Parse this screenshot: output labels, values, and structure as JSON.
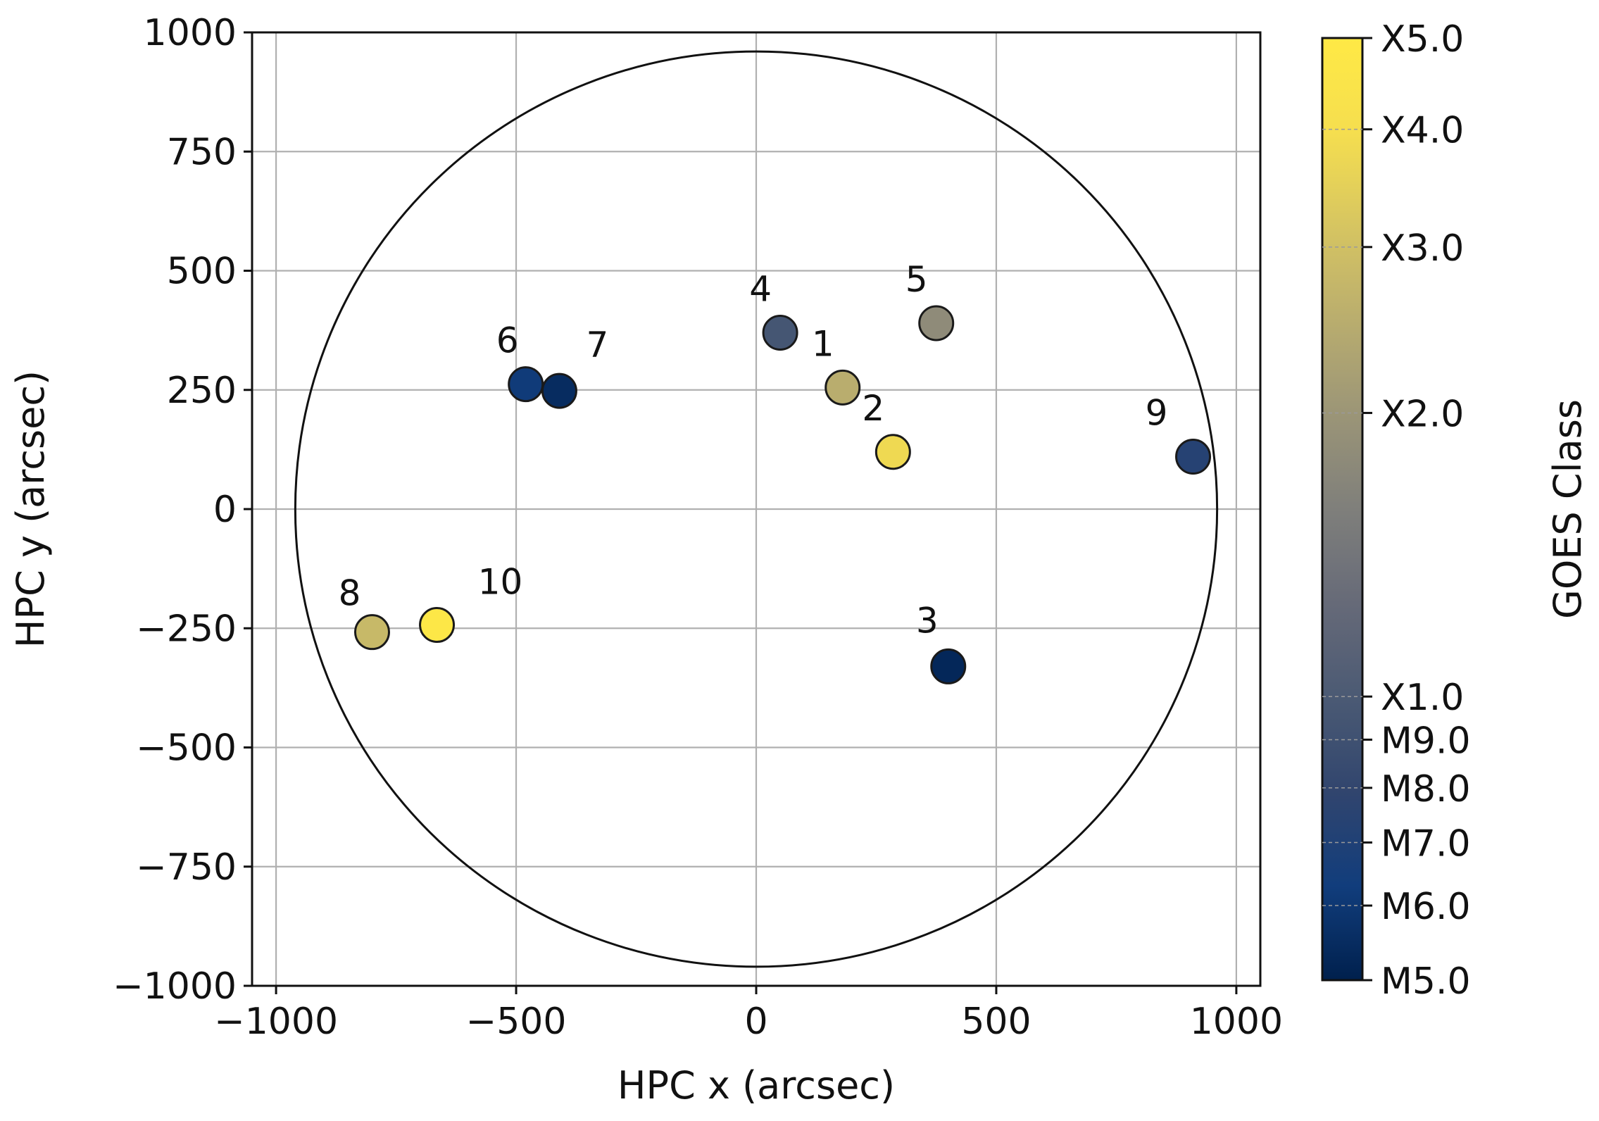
{
  "chart_data": {
    "type": "scatter",
    "xlabel": "HPC x (arcsec)",
    "ylabel": "HPC y (arcsec)",
    "xlim": [
      -1050,
      1050
    ],
    "ylim": [
      -1000,
      1000
    ],
    "xticks": [
      -1000,
      -500,
      0,
      500,
      1000
    ],
    "xtick_labels": [
      "−1000",
      "−500",
      "0",
      "500",
      "1000"
    ],
    "yticks": [
      -1000,
      -750,
      -500,
      -250,
      0,
      250,
      500,
      750,
      1000
    ],
    "ytick_labels": [
      "−1000",
      "−750",
      "−500",
      "−250",
      "0",
      "250",
      "500",
      "750",
      "1000"
    ],
    "grid": true,
    "solar_disk_radius": 960,
    "points": [
      {
        "label": "1",
        "x": 180,
        "y": 255,
        "goes": 25
      },
      {
        "label": "2",
        "x": 285,
        "y": 120,
        "goes": 38
      },
      {
        "label": "3",
        "x": 400,
        "y": -330,
        "goes": 5.3
      },
      {
        "label": "4",
        "x": 50,
        "y": 370,
        "goes": 9.5
      },
      {
        "label": "5",
        "x": 375,
        "y": 390,
        "goes": 18
      },
      {
        "label": "6",
        "x": -480,
        "y": 262,
        "goes": 6.2
      },
      {
        "label": "7",
        "x": -410,
        "y": 248,
        "goes": 5.5
      },
      {
        "label": "8",
        "x": -800,
        "y": -258,
        "goes": 28
      },
      {
        "label": "9",
        "x": 910,
        "y": 110,
        "goes": 7.3
      },
      {
        "label": "10",
        "x": -665,
        "y": -243,
        "goes": 48
      }
    ],
    "colorbar": {
      "label": "GOES Class",
      "ticks": [
        5,
        6,
        7,
        8,
        9,
        10,
        20,
        30,
        40,
        50
      ],
      "tick_labels": [
        "M5.0",
        "M6.0",
        "M7.0",
        "M8.0",
        "M9.0",
        "X1.0",
        "X2.0",
        "X3.0",
        "X4.0",
        "X5.0"
      ],
      "colormap": "cividis",
      "colors": [
        "#00204d",
        "#113d7c",
        "#31456e",
        "#4b5a74",
        "#666a78",
        "#7f7f7b",
        "#9b9577",
        "#b9ad6e",
        "#d6c561",
        "#f5de4f",
        "#ffe945"
      ]
    }
  }
}
